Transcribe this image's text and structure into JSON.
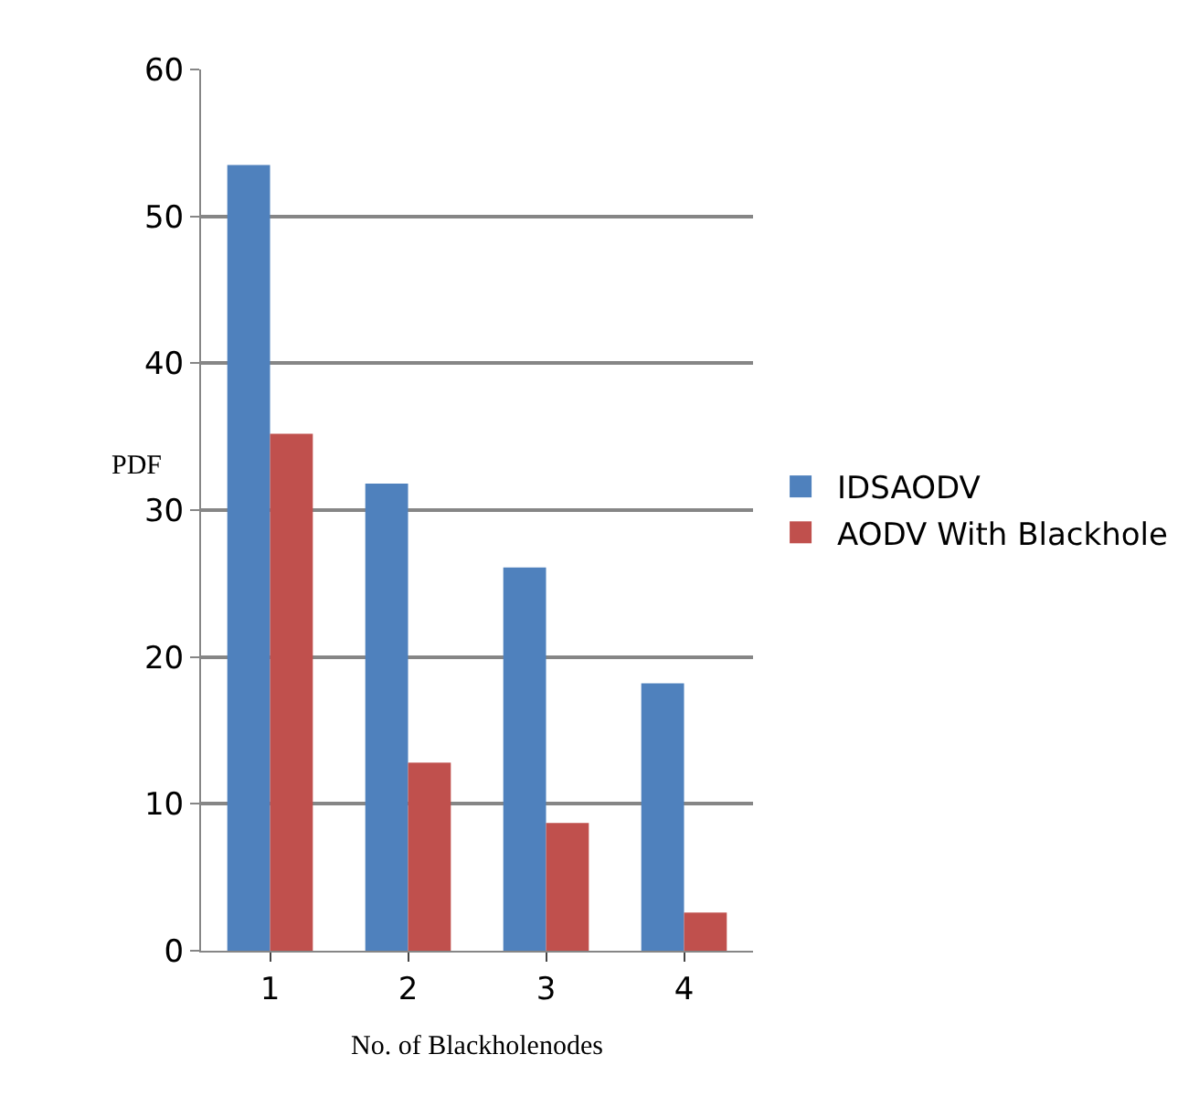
{
  "chart_data": {
    "type": "bar",
    "xlabel": "No. of Blackholenodes",
    "ylabel": "PDF",
    "categories": [
      "1",
      "2",
      "3",
      "4"
    ],
    "series": [
      {
        "name": "IDSAODV",
        "color": "#4f81bd",
        "values": [
          53.5,
          31.8,
          26.1,
          18.2
        ]
      },
      {
        "name": "AODV With Blackhole",
        "color": "#c0504d",
        "values": [
          35.2,
          12.8,
          8.7,
          2.6
        ]
      }
    ],
    "ylim": [
      0,
      60
    ],
    "yticks": [
      0,
      10,
      20,
      30,
      40,
      50,
      60
    ],
    "grid": "y",
    "legend": "right"
  }
}
